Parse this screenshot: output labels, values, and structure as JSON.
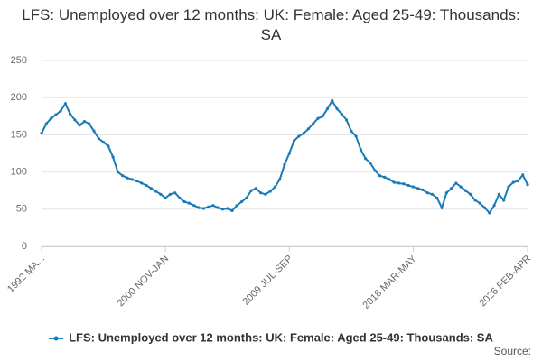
{
  "chart_data": {
    "type": "line",
    "title": "LFS: Unemployed over 12 months: UK: Female: Aged 25-49: Thousands: SA",
    "categories": [
      "1992 MA...",
      null,
      null,
      null,
      null,
      null,
      null,
      null,
      null,
      null,
      null,
      null,
      null,
      null,
      null,
      null,
      null,
      null,
      null,
      null,
      null,
      null,
      null,
      null,
      null,
      null,
      "2000 NOV-JAN",
      null,
      null,
      null,
      null,
      null,
      null,
      null,
      null,
      null,
      null,
      null,
      null,
      null,
      null,
      null,
      null,
      null,
      null,
      null,
      null,
      null,
      null,
      null,
      null,
      null,
      "2009 JUL-SEP",
      null,
      null,
      null,
      null,
      null,
      null,
      null,
      null,
      null,
      null,
      null,
      null,
      null,
      null,
      null,
      null,
      null,
      null,
      null,
      null,
      null,
      null,
      null,
      null,
      null,
      "2018 MAR-MAY",
      null,
      null,
      null,
      null,
      null,
      null,
      null,
      null,
      null,
      null,
      null,
      null,
      null,
      null,
      null,
      null,
      null,
      null,
      null,
      null,
      null,
      null,
      null,
      "2026 FEB-APR"
    ],
    "series": [
      {
        "name": "LFS: Unemployed over 12 months: UK: Female: Aged 25-49: Thousands: SA",
        "color": "#1a7ab8",
        "values": [
          152,
          165,
          172,
          177,
          182,
          192,
          178,
          170,
          163,
          168,
          165,
          155,
          145,
          140,
          135,
          120,
          100,
          95,
          92,
          90,
          88,
          85,
          82,
          78,
          74,
          70,
          65,
          70,
          72,
          65,
          60,
          58,
          55,
          52,
          51,
          53,
          55,
          52,
          50,
          51,
          48,
          55,
          60,
          65,
          75,
          78,
          72,
          70,
          74,
          80,
          90,
          110,
          125,
          142,
          148,
          152,
          158,
          165,
          172,
          175,
          185,
          196,
          185,
          178,
          170,
          155,
          148,
          130,
          118,
          112,
          102,
          95,
          93,
          90,
          86,
          85,
          84,
          82,
          80,
          78,
          76,
          72,
          70,
          65,
          52,
          72,
          78,
          85,
          80,
          75,
          70,
          62,
          58,
          52,
          45,
          55,
          70,
          62,
          80,
          86,
          88,
          96,
          83
        ]
      }
    ],
    "ylim": [
      0,
      250
    ],
    "yticks": [
      0,
      50,
      100,
      150,
      200,
      250
    ],
    "grid": true,
    "legend": "bottom",
    "source_label": "Source:"
  }
}
